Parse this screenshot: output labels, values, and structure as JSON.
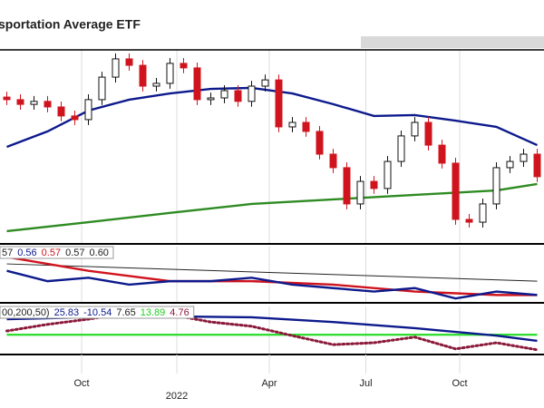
{
  "chart_data": [
    {
      "type": "candlestick",
      "title": "sportation Average ETF",
      "xlim": [
        -0.5,
        39.5
      ],
      "ylim": [
        200,
        290
      ],
      "open": [
        268,
        266.8,
        264.6,
        266,
        263.4,
        259.2,
        257.5,
        266.8,
        277.3,
        285.8,
        282.8,
        273.1,
        274.4,
        283.7,
        281.6,
        266.8,
        267.6,
        271,
        266,
        273.1,
        276,
        254.1,
        256.2,
        252,
        241.4,
        235.1,
        218.2,
        228.7,
        225.4,
        238,
        249.9,
        256.2,
        245.6,
        237.2,
        211,
        209.7,
        218.2,
        235.1,
        238,
        241.4
      ],
      "high": [
        270.5,
        269.3,
        268.5,
        268.5,
        265.9,
        261.7,
        269.3,
        279.8,
        288.3,
        288.3,
        285.3,
        276.9,
        286.2,
        286.2,
        284.1,
        270.1,
        273.5,
        273.5,
        275.6,
        278.5,
        278.5,
        258.7,
        258.7,
        254.5,
        243.9,
        237.6,
        231.2,
        231.2,
        240.5,
        252.4,
        258.7,
        258.7,
        248.1,
        239.7,
        213.5,
        220.7,
        237.6,
        240.5,
        243.9,
        243.9
      ],
      "low": [
        264.3,
        262.1,
        262.1,
        260.9,
        256.7,
        255,
        255,
        264.3,
        274.8,
        280.3,
        270.6,
        270.6,
        271.9,
        279.1,
        264.3,
        264.3,
        265.1,
        263.5,
        263.5,
        270.6,
        251.6,
        251.6,
        249.5,
        238.9,
        232.6,
        215.7,
        215.7,
        222.9,
        222.9,
        235.5,
        247.4,
        243.1,
        234.7,
        208.5,
        207.2,
        207.2,
        215.7,
        232.6,
        235.5,
        228.4
      ],
      "close": [
        266.8,
        264.6,
        266,
        263.4,
        259.2,
        257.5,
        266.8,
        277.3,
        285.8,
        282.8,
        273.1,
        274.4,
        283.7,
        281.6,
        266.8,
        267.6,
        271,
        266,
        273.1,
        276,
        254.1,
        256.2,
        252,
        241.4,
        235.1,
        218.2,
        228.7,
        225.4,
        238,
        249.9,
        256.2,
        245.6,
        237.2,
        211,
        209.7,
        218.2,
        235.1,
        238,
        241.4,
        230.9
      ],
      "up_color": "#111111",
      "down_color": "#d0141e",
      "series": [
        {
          "color": "#0d1a8c",
          "style": "solid",
          "x": [
            0,
            3,
            6,
            9,
            12,
            15,
            18,
            21,
            24,
            27,
            30,
            33,
            36,
            39
          ],
          "values": [
            244.8,
            252,
            261.7,
            266.8,
            269.7,
            271.8,
            272.3,
            269.7,
            264.7,
            259.2,
            259.6,
            257,
            254.1,
            245.6
          ]
        },
        {
          "color": "#2e8b22",
          "style": "solid",
          "x": [
            0,
            6,
            12,
            18,
            24,
            30,
            36,
            39
          ],
          "values": [
            205.5,
            209.7,
            214,
            218.2,
            220.3,
            222.4,
            224.5,
            227.5
          ]
        }
      ]
    },
    {
      "type": "line",
      "xlim": [
        -0.5,
        39.5
      ],
      "ylim": [
        0.5,
        0.66
      ],
      "legend": [
        {
          "text": "57",
          "color": "#222222"
        },
        {
          "text": "0.56",
          "color": "#0d1a8c"
        },
        {
          "text": "0.57",
          "color": "#d0141e"
        },
        {
          "text": "0.57",
          "color": "#222222"
        },
        {
          "text": "0.60",
          "color": "#222222"
        }
      ],
      "series": [
        {
          "color": "#222222",
          "style": "thin",
          "x": [
            0,
            39
          ],
          "values": [
            0.61,
            0.56
          ]
        },
        {
          "color": "#d0141e",
          "style": "solid",
          "x": [
            0,
            6,
            12,
            18,
            24,
            30,
            36,
            39
          ],
          "values": [
            0.63,
            0.59,
            0.56,
            0.56,
            0.55,
            0.53,
            0.52,
            0.52
          ]
        },
        {
          "color": "#0d1a8c",
          "style": "solid",
          "x": [
            0,
            3,
            6,
            9,
            12,
            15,
            18,
            21,
            24,
            27,
            30,
            33,
            36,
            39
          ],
          "values": [
            0.59,
            0.56,
            0.57,
            0.55,
            0.56,
            0.56,
            0.57,
            0.55,
            0.54,
            0.53,
            0.54,
            0.51,
            0.53,
            0.52
          ]
        }
      ]
    },
    {
      "type": "line",
      "xlim": [
        -0.5,
        39.5
      ],
      "ylim": [
        -40,
        60
      ],
      "legend": [
        {
          "text": "00,200,50)",
          "color": "#222222"
        },
        {
          "text": "25.83",
          "color": "#0d1a8c"
        },
        {
          "text": "-10.54",
          "color": "#0d1a8c"
        },
        {
          "text": "7.65",
          "color": "#222222"
        },
        {
          "text": "13.89",
          "color": "#22cc22"
        },
        {
          "text": "4.76",
          "color": "#8b1a3a"
        }
      ],
      "series": [
        {
          "color": "#33dd33",
          "style": "solid",
          "x": [
            0,
            39
          ],
          "values": [
            0,
            0
          ]
        },
        {
          "color": "#0d1a8c",
          "style": "solid",
          "x": [
            0,
            6,
            12,
            18,
            24,
            30,
            36,
            39
          ],
          "values": [
            33,
            37,
            39,
            37,
            27,
            14,
            -2,
            -13
          ]
        },
        {
          "color": "#8b1a3a",
          "style": "dotted",
          "x": [
            0,
            3,
            6,
            9,
            12,
            15,
            18,
            21,
            24,
            27,
            30,
            33,
            36,
            39
          ],
          "values": [
            8,
            22,
            33,
            47,
            43,
            27,
            18,
            -2,
            -21,
            -17,
            -5,
            -30,
            -17,
            -32
          ]
        }
      ],
      "xticks": [
        {
          "value": 5.5,
          "label": "Oct"
        },
        {
          "value": 12.5,
          "label": "2022"
        },
        {
          "value": 19.3,
          "label": "Apr"
        },
        {
          "value": 26.4,
          "label": "Jul"
        },
        {
          "value": 33.3,
          "label": "Oct"
        }
      ]
    }
  ]
}
